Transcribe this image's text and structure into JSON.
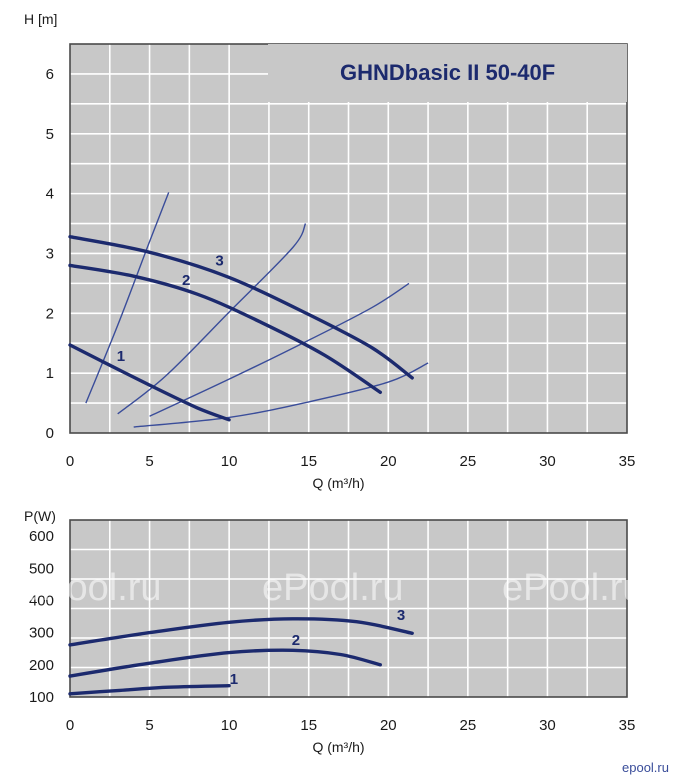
{
  "title": {
    "main": "GHNDbasic",
    "suffix": " II  50-40F"
  },
  "colors": {
    "background": "#c8c8c8",
    "grid": "#ffffff",
    "curve": "#1c2a6e",
    "system_curve": "#3a4d9a"
  },
  "watermark": "ePool.ru",
  "corner_logo": "epool.ru",
  "chart_data": [
    {
      "type": "line",
      "name": "head",
      "ylabel": "H [m]",
      "xlabel": "Q (m³/h)",
      "xlim": [
        0,
        35
      ],
      "ylim": [
        0,
        6.5
      ],
      "x_ticks": [
        0,
        5,
        10,
        15,
        20,
        25,
        30,
        35
      ],
      "y_ticks": [
        0,
        1,
        2,
        3,
        4,
        5,
        6
      ],
      "grid": true,
      "series": [
        {
          "name": "1",
          "points": [
            [
              0,
              1.47
            ],
            [
              2,
              1.2
            ],
            [
              5,
              0.8
            ],
            [
              8,
              0.42
            ],
            [
              10,
              0.22
            ]
          ]
        },
        {
          "name": "2",
          "points": [
            [
              0,
              2.8
            ],
            [
              4,
              2.62
            ],
            [
              8,
              2.32
            ],
            [
              12,
              1.85
            ],
            [
              16,
              1.3
            ],
            [
              19.5,
              0.68
            ]
          ]
        },
        {
          "name": "3",
          "points": [
            [
              0,
              3.28
            ],
            [
              5,
              3.02
            ],
            [
              10,
              2.6
            ],
            [
              15,
              1.98
            ],
            [
              19,
              1.42
            ],
            [
              21.5,
              0.92
            ]
          ]
        }
      ],
      "system_curves": [
        [
          [
            1,
            0.5
          ],
          [
            3,
            1.8
          ],
          [
            5,
            3.2
          ],
          [
            6.2,
            4.02
          ]
        ],
        [
          [
            3,
            0.32
          ],
          [
            6,
            0.95
          ],
          [
            10,
            2.02
          ],
          [
            14,
            3.1
          ],
          [
            14.8,
            3.5
          ]
        ],
        [
          [
            5,
            0.28
          ],
          [
            10,
            0.9
          ],
          [
            15,
            1.55
          ],
          [
            19,
            2.1
          ],
          [
            21.3,
            2.5
          ]
        ],
        [
          [
            4,
            0.1
          ],
          [
            10,
            0.26
          ],
          [
            15,
            0.52
          ],
          [
            20,
            0.85
          ],
          [
            22.5,
            1.17
          ]
        ]
      ],
      "curve_labels": [
        {
          "text": "1",
          "x": 3.2,
          "y": 1.2
        },
        {
          "text": "2",
          "x": 7.3,
          "y": 2.47
        },
        {
          "text": "3",
          "x": 9.4,
          "y": 2.8
        }
      ]
    },
    {
      "type": "line",
      "name": "power",
      "ylabel": "P(W)",
      "xlabel": "Q (m³/h)",
      "xlim": [
        0,
        35
      ],
      "ylim": [
        100,
        650
      ],
      "x_ticks": [
        0,
        5,
        10,
        15,
        20,
        25,
        30,
        35
      ],
      "y_ticks": [
        100,
        200,
        300,
        400,
        500,
        600
      ],
      "grid": true,
      "series": [
        {
          "name": "1",
          "points": [
            [
              0,
              110
            ],
            [
              3,
              120
            ],
            [
              6,
              130
            ],
            [
              10,
              135
            ]
          ]
        },
        {
          "name": "2",
          "points": [
            [
              0,
              165
            ],
            [
              5,
              205
            ],
            [
              10,
              238
            ],
            [
              14,
              245
            ],
            [
              17,
              232
            ],
            [
              19.5,
              200
            ]
          ]
        },
        {
          "name": "3",
          "points": [
            [
              0,
              262
            ],
            [
              5,
              300
            ],
            [
              10,
              332
            ],
            [
              14,
              343
            ],
            [
              18,
              334
            ],
            [
              21.5,
              298
            ]
          ]
        }
      ],
      "curve_labels": [
        {
          "text": "1",
          "x": 10.3,
          "y": 140
        },
        {
          "text": "2",
          "x": 14.2,
          "y": 262
        },
        {
          "text": "3",
          "x": 20.8,
          "y": 340
        }
      ]
    }
  ]
}
